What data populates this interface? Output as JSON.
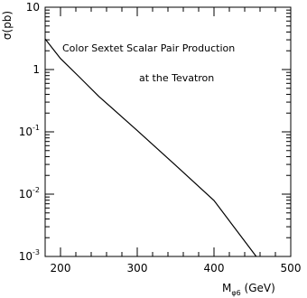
{
  "chart_data": {
    "type": "line",
    "annotation_lines": [
      "Color Sextet Scalar Pair Production",
      "at the Tevatron"
    ],
    "xlabel": {
      "main": "M",
      "sub": "φ6",
      "rest": " (GeV)"
    },
    "ylabel": "σ(pb)",
    "xlim": [
      180,
      500
    ],
    "ylim": [
      0.001,
      10
    ],
    "yscale": "log",
    "grid": false,
    "legend": "none",
    "xticks": [
      {
        "value": 200,
        "label": "200"
      },
      {
        "value": 300,
        "label": "300"
      },
      {
        "value": 400,
        "label": "400"
      },
      {
        "value": 500,
        "label": "500"
      }
    ],
    "yticks": [
      {
        "value": 10,
        "base": "10",
        "exp": ""
      },
      {
        "value": 1,
        "base": "1",
        "exp": ""
      },
      {
        "value": 0.1,
        "base": "10",
        "exp": "-1"
      },
      {
        "value": 0.01,
        "base": "10",
        "exp": "-2"
      },
      {
        "value": 0.001,
        "base": "10",
        "exp": "-3"
      }
    ],
    "series": [
      {
        "x": [
          180,
          200,
          225,
          250,
          300,
          350,
          400,
          455
        ],
        "y": [
          3.1,
          1.5,
          0.75,
          0.37,
          0.105,
          0.029,
          0.0079,
          0.001
        ]
      }
    ]
  }
}
